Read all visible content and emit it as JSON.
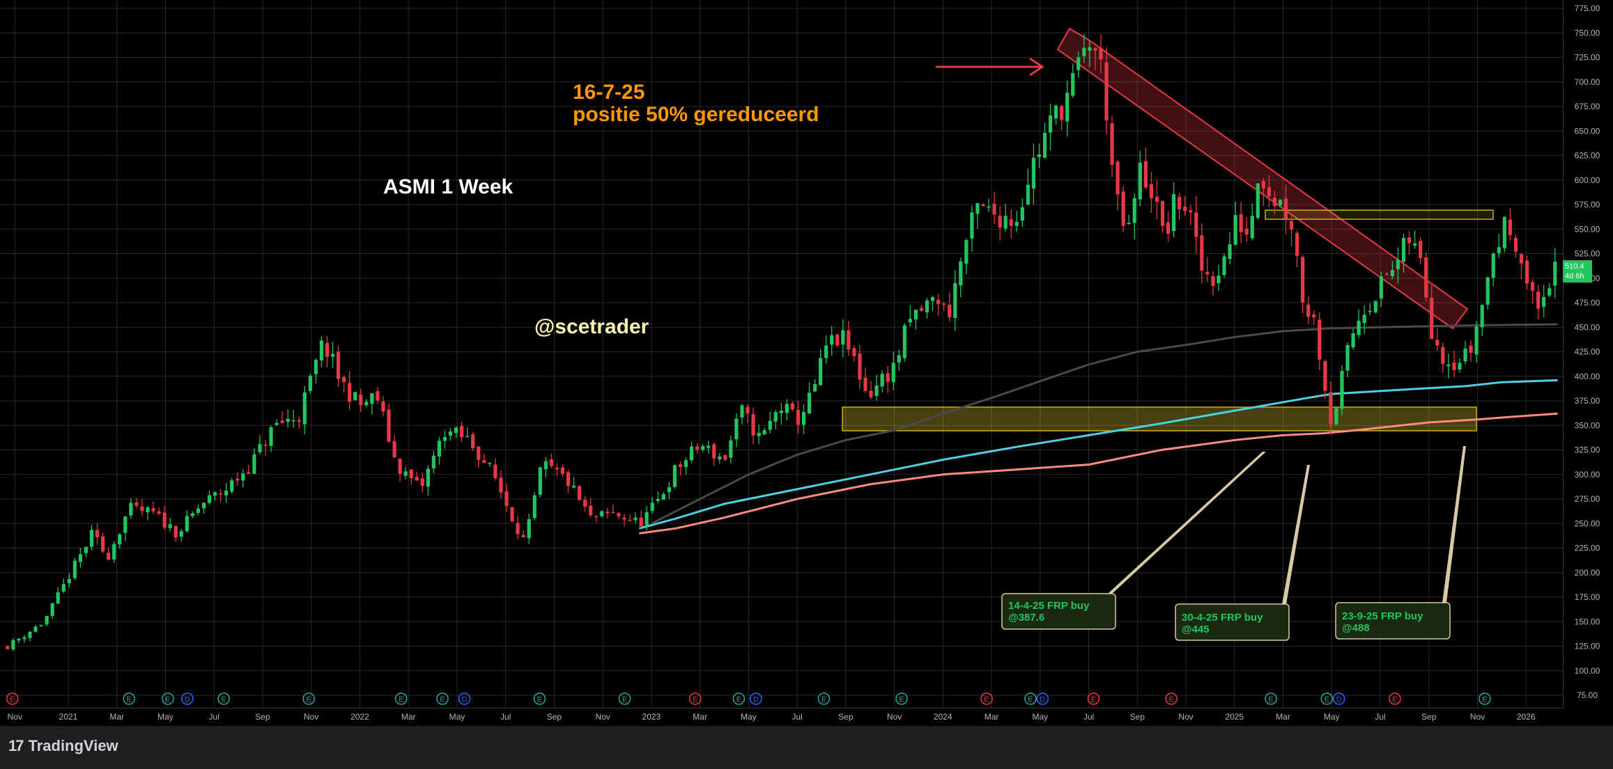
{
  "chart_data": {
    "type": "candlestick",
    "title": "ASMI 1 Week",
    "watermark": "@scetrader",
    "note_lines": [
      "16-7-25",
      "positie 50% gereduceerd"
    ],
    "y_ticks": [
      "775.00",
      "750.00",
      "725.00",
      "700.00",
      "675.00",
      "650.00",
      "625.00",
      "600.00",
      "575.00",
      "550.00",
      "525.00",
      "500.00",
      "475.00",
      "450.00",
      "425.00",
      "400.00",
      "375.00",
      "350.00",
      "325.00",
      "300.00",
      "275.00",
      "250.00",
      "225.00",
      "200.00",
      "175.00",
      "150.00",
      "125.00",
      "100.00",
      "75.00"
    ],
    "ylim": [
      60,
      785
    ],
    "x_ticks": [
      {
        "label": "Nov",
        "t": -2.2
      },
      {
        "label": "2021",
        "t": 0
      },
      {
        "label": "Mar",
        "t": 2
      },
      {
        "label": "May",
        "t": 4
      },
      {
        "label": "Jul",
        "t": 6
      },
      {
        "label": "Sep",
        "t": 8
      },
      {
        "label": "Nov",
        "t": 10
      },
      {
        "label": "2022",
        "t": 12
      },
      {
        "label": "Mar",
        "t": 14
      },
      {
        "label": "May",
        "t": 16
      },
      {
        "label": "Jul",
        "t": 18
      },
      {
        "label": "Sep",
        "t": 20
      },
      {
        "label": "Nov",
        "t": 22
      },
      {
        "label": "2023",
        "t": 24
      },
      {
        "label": "Mar",
        "t": 26
      },
      {
        "label": "May",
        "t": 28
      },
      {
        "label": "Jul",
        "t": 30
      },
      {
        "label": "Sep",
        "t": 32
      },
      {
        "label": "Nov",
        "t": 34
      },
      {
        "label": "2024",
        "t": 36
      },
      {
        "label": "Mar",
        "t": 38
      },
      {
        "label": "May",
        "t": 40
      },
      {
        "label": "Jul",
        "t": 42
      },
      {
        "label": "Sep",
        "t": 44
      },
      {
        "label": "Nov",
        "t": 46
      },
      {
        "label": "2025",
        "t": 48
      },
      {
        "label": "Mar",
        "t": 50
      },
      {
        "label": "May",
        "t": 52
      },
      {
        "label": "Jul",
        "t": 54
      },
      {
        "label": "Sep",
        "t": 56
      },
      {
        "label": "Nov",
        "t": 58
      },
      {
        "label": "2026",
        "t": 60
      }
    ],
    "price_path": [
      [
        -2.5,
        125
      ],
      [
        -1,
        150
      ],
      [
        0,
        195
      ],
      [
        1,
        240
      ],
      [
        1.6,
        215
      ],
      [
        2.5,
        265
      ],
      [
        3.5,
        260
      ],
      [
        4.5,
        240
      ],
      [
        5.5,
        270
      ],
      [
        6.5,
        285
      ],
      [
        7.5,
        310
      ],
      [
        8.5,
        350
      ],
      [
        9.5,
        360
      ],
      [
        10.5,
        435
      ],
      [
        11.2,
        395
      ],
      [
        12,
        370
      ],
      [
        12.7,
        380
      ],
      [
        13.5,
        310
      ],
      [
        14.5,
        285
      ],
      [
        15.5,
        345
      ],
      [
        16.5,
        335
      ],
      [
        17.5,
        300
      ],
      [
        18.3,
        255
      ],
      [
        18.8,
        230
      ],
      [
        19.5,
        310
      ],
      [
        20.5,
        295
      ],
      [
        21.5,
        255
      ],
      [
        22.5,
        260
      ],
      [
        23.5,
        250
      ],
      [
        24.2,
        270
      ],
      [
        25,
        305
      ],
      [
        26,
        330
      ],
      [
        27,
        315
      ],
      [
        27.7,
        365
      ],
      [
        28.5,
        335
      ],
      [
        29.3,
        370
      ],
      [
        30,
        355
      ],
      [
        30.6,
        380
      ],
      [
        31.2,
        430
      ],
      [
        31.8,
        440
      ],
      [
        32.3,
        420
      ],
      [
        32.9,
        380
      ],
      [
        33.4,
        395
      ],
      [
        34,
        410
      ],
      [
        34.6,
        455
      ],
      [
        35.2,
        470
      ],
      [
        35.8,
        480
      ],
      [
        36.2,
        460
      ],
      [
        36.8,
        525
      ],
      [
        37.4,
        570
      ],
      [
        38.2,
        565
      ],
      [
        39,
        560
      ],
      [
        39.6,
        610
      ],
      [
        40.1,
        640
      ],
      [
        40.6,
        665
      ],
      [
        41.2,
        690
      ],
      [
        41.7,
        720
      ],
      [
        42.1,
        745
      ],
      [
        42.6,
        705
      ],
      [
        43.1,
        580
      ],
      [
        43.6,
        540
      ],
      [
        44.1,
        610
      ],
      [
        44.6,
        590
      ],
      [
        45.1,
        540
      ],
      [
        45.6,
        580
      ],
      [
        46.1,
        570
      ],
      [
        46.6,
        510
      ],
      [
        47.1,
        500
      ],
      [
        47.6,
        520
      ],
      [
        48.1,
        560
      ],
      [
        48.6,
        545
      ],
      [
        49,
        615
      ],
      [
        49.5,
        585
      ],
      [
        50,
        575
      ],
      [
        50.4,
        555
      ],
      [
        50.8,
        480
      ],
      [
        51.3,
        455
      ],
      [
        51.7,
        395
      ],
      [
        52,
        350
      ],
      [
        52.4,
        395
      ],
      [
        52.8,
        440
      ],
      [
        53.3,
        470
      ],
      [
        53.7,
        480
      ],
      [
        54.2,
        500
      ],
      [
        54.7,
        515
      ],
      [
        55.2,
        540
      ],
      [
        55.7,
        515
      ],
      [
        56.1,
        450
      ],
      [
        56.6,
        420
      ],
      [
        57.2,
        415
      ],
      [
        57.7,
        425
      ],
      [
        58.2,
        475
      ],
      [
        58.7,
        530
      ],
      [
        59.2,
        555
      ],
      [
        59.7,
        535
      ],
      [
        60.1,
        485
      ],
      [
        60.5,
        470
      ],
      [
        61,
        500
      ],
      [
        61.3,
        510.4
      ]
    ],
    "series": [
      {
        "name": "",
        "color": "#ff8a80",
        "points": [
          [
            23.5,
            240
          ],
          [
            25,
            245
          ],
          [
            27,
            256
          ],
          [
            30,
            275
          ],
          [
            33,
            290
          ],
          [
            36,
            300
          ],
          [
            39,
            305
          ],
          [
            42,
            310
          ],
          [
            45,
            325
          ],
          [
            48,
            335
          ],
          [
            50,
            340
          ],
          [
            51.7,
            342
          ],
          [
            53,
            345
          ],
          [
            56,
            353
          ],
          [
            58,
            356
          ],
          [
            59,
            358
          ],
          [
            61.3,
            362
          ]
        ]
      },
      {
        "name": "",
        "color": "#4dd0e1",
        "points": [
          [
            23.5,
            245
          ],
          [
            25,
            255
          ],
          [
            27,
            270
          ],
          [
            30,
            285
          ],
          [
            33,
            300
          ],
          [
            36,
            315
          ],
          [
            39,
            328
          ],
          [
            42,
            340
          ],
          [
            45,
            352
          ],
          [
            48,
            365
          ],
          [
            51,
            378
          ],
          [
            52,
            382
          ],
          [
            54,
            385
          ],
          [
            56,
            388
          ],
          [
            57.5,
            390
          ],
          [
            59,
            394
          ],
          [
            61.3,
            396
          ]
        ]
      },
      {
        "name": "",
        "color": "#4a4a4a",
        "points": [
          [
            24,
            250
          ],
          [
            26,
            275
          ],
          [
            28,
            300
          ],
          [
            30,
            320
          ],
          [
            32,
            335
          ],
          [
            34,
            345
          ],
          [
            36,
            362
          ],
          [
            38,
            378
          ],
          [
            40,
            395
          ],
          [
            42,
            412
          ],
          [
            44,
            425
          ],
          [
            46,
            432
          ],
          [
            48,
            440
          ],
          [
            50,
            446
          ],
          [
            52,
            449
          ],
          [
            54,
            450
          ],
          [
            56,
            451
          ],
          [
            58,
            452
          ],
          [
            61.3,
            453
          ]
        ]
      }
    ],
    "last_price": "510.4",
    "last_price_sub": "4d 6h",
    "callouts": [
      {
        "line1": "14-4-25 FRP buy",
        "line2": "@387.6"
      },
      {
        "line1": "30-4-25 FRP buy",
        "line2": "@445"
      },
      {
        "line1": "23-9-25 FRP buy",
        "line2": "@488"
      }
    ],
    "events": [
      {
        "t": -2.3,
        "k": "E",
        "c": "#e03a3a"
      },
      {
        "t": 2.5,
        "k": "E",
        "c": "#2aa198"
      },
      {
        "t": 4.1,
        "k": "E",
        "c": "#2aa198"
      },
      {
        "t": 4.9,
        "k": "D",
        "c": "#2962ff"
      },
      {
        "t": 6.4,
        "k": "E",
        "c": "#2aa198"
      },
      {
        "t": 9.9,
        "k": "E",
        "c": "#2aa198"
      },
      {
        "t": 13.7,
        "k": "E",
        "c": "#2aa198"
      },
      {
        "t": 15.4,
        "k": "E",
        "c": "#2aa198"
      },
      {
        "t": 16.3,
        "k": "D",
        "c": "#2962ff"
      },
      {
        "t": 19.4,
        "k": "E",
        "c": "#2aa198"
      },
      {
        "t": 22.9,
        "k": "E",
        "c": "#2aa198"
      },
      {
        "t": 25.8,
        "k": "E",
        "c": "#e03a3a"
      },
      {
        "t": 27.6,
        "k": "E",
        "c": "#2aa198"
      },
      {
        "t": 28.3,
        "k": "D",
        "c": "#2962ff"
      },
      {
        "t": 31.1,
        "k": "E",
        "c": "#2aa198"
      },
      {
        "t": 34.3,
        "k": "E",
        "c": "#2aa198"
      },
      {
        "t": 37.8,
        "k": "E",
        "c": "#e03a3a"
      },
      {
        "t": 39.6,
        "k": "E",
        "c": "#2aa198"
      },
      {
        "t": 40.1,
        "k": "D",
        "c": "#2962ff"
      },
      {
        "t": 42.2,
        "k": "E",
        "c": "#e03a3a"
      },
      {
        "t": 45.4,
        "k": "E",
        "c": "#e03a3a"
      },
      {
        "t": 49.5,
        "k": "E",
        "c": "#2aa198"
      },
      {
        "t": 51.8,
        "k": "E",
        "c": "#2aa198"
      },
      {
        "t": 52.3,
        "k": "D",
        "c": "#2962ff"
      },
      {
        "t": 54.6,
        "k": "E",
        "c": "#e03a3a"
      },
      {
        "t": 58.3,
        "k": "E",
        "c": "#2aa198"
      }
    ],
    "colors": {
      "up": "#22c55e",
      "down": "#e53945",
      "grid": "#2a2a2a",
      "axis_text": "#b2b5be",
      "title": "#ffffff",
      "note": "#ff9800",
      "watermark": "#fff3b0",
      "callout_text": "#22c55e"
    }
  },
  "footer": {
    "brand": "TradingView"
  }
}
